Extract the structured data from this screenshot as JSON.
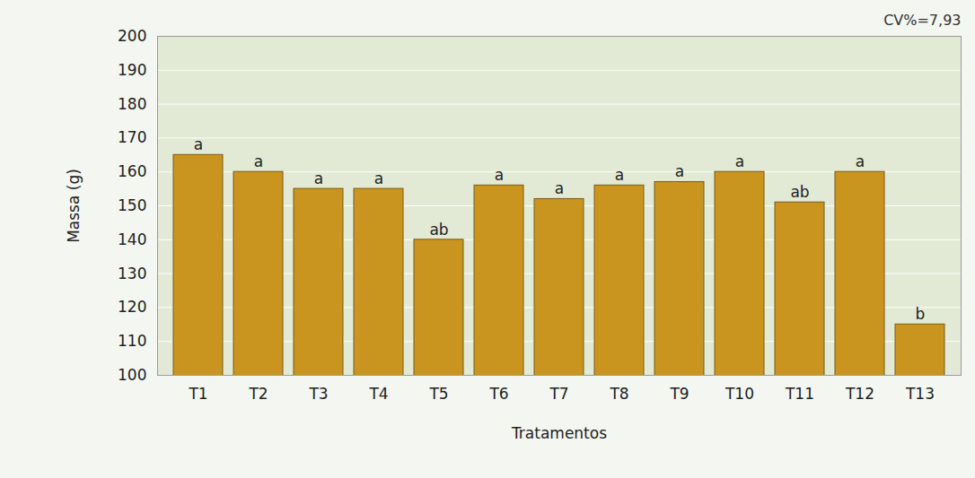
{
  "chart_data": {
    "type": "bar",
    "x_label": "Tratamentos",
    "y_label": "Massa (g)",
    "categories": [
      "T1",
      "T2",
      "T3",
      "T4",
      "T5",
      "T6",
      "T7",
      "T8",
      "T9",
      "T10",
      "T11",
      "T12",
      "T13"
    ],
    "values": [
      165,
      160,
      155,
      155,
      140,
      156,
      152,
      156,
      157,
      160,
      151,
      160,
      115
    ],
    "letters": [
      "a",
      "a",
      "a",
      "a",
      "ab",
      "a",
      "a",
      "a",
      "a",
      "a",
      "ab",
      "a",
      "b"
    ],
    "annotations": [
      "CV%=7,93"
    ],
    "color": "#c9951f",
    "ylim": [
      100,
      200
    ],
    "yticks": [
      100,
      110,
      120,
      130,
      140,
      150,
      160,
      170,
      180,
      190,
      200
    ],
    "grid": true
  }
}
